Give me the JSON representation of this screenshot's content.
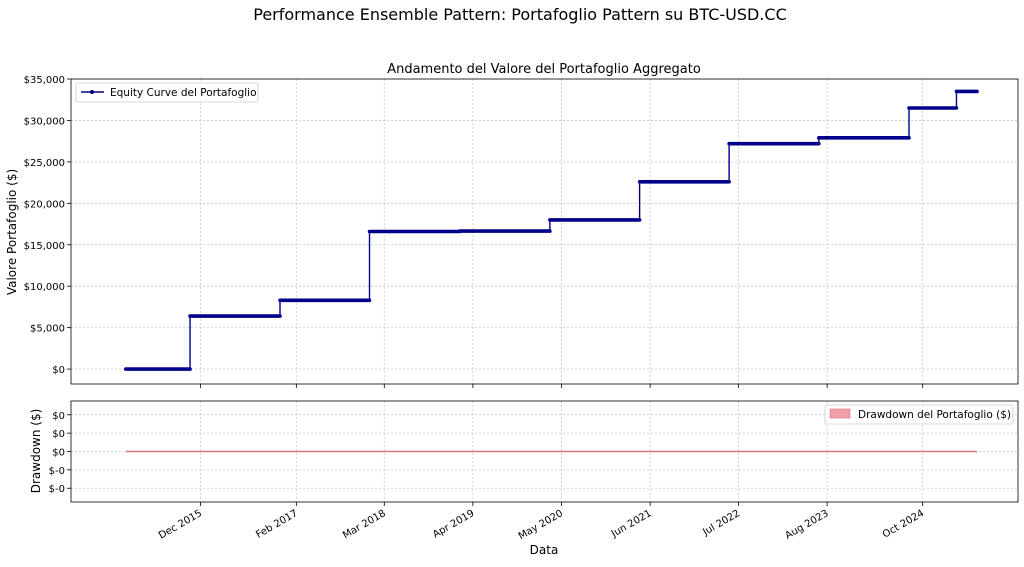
{
  "suptitle": "Performance Ensemble Pattern: Portafoglio Pattern su BTC-USD.CC",
  "chart_data": [
    {
      "type": "line",
      "title": "Andamento del Valore del Portafoglio Aggregato",
      "xlabel": "",
      "ylabel": "Valore Portafoglio ($)",
      "grid": true,
      "legend_position": "top-left",
      "ylim": [
        -1800,
        35000
      ],
      "yticks": [
        0,
        5000,
        10000,
        15000,
        20000,
        25000,
        30000,
        35000
      ],
      "ytick_labels": [
        "$0",
        "$5,000",
        "$10,000",
        "$15,000",
        "$20,000",
        "$25,000",
        "$30,000",
        "$35,000"
      ],
      "series": [
        {
          "name": "Equity Curve del Portafoglio",
          "color": "#00008b",
          "step_points": [
            {
              "x": "2015-01-01",
              "y": 0
            },
            {
              "x": "2015-10-15",
              "y": 6400
            },
            {
              "x": "2016-11-20",
              "y": 8300
            },
            {
              "x": "2017-12-25",
              "y": 16600
            },
            {
              "x": "2019-02-01",
              "y": 16650
            },
            {
              "x": "2020-03-10",
              "y": 18000
            },
            {
              "x": "2021-04-15",
              "y": 22600
            },
            {
              "x": "2022-05-20",
              "y": 27200
            },
            {
              "x": "2023-06-25",
              "y": 27900
            },
            {
              "x": "2024-08-01",
              "y": 31500
            },
            {
              "x": "2025-03-01",
              "y": 33500
            }
          ],
          "end_x": "2025-06-01"
        }
      ]
    },
    {
      "type": "area",
      "title": "",
      "xlabel": "Data",
      "ylabel": "Drawdown ($)",
      "grid": true,
      "legend_position": "top-right",
      "ylim": [
        -0.055,
        0.055
      ],
      "yticks": [
        -0.04,
        -0.02,
        0,
        0.02,
        0.04
      ],
      "ytick_labels": [
        "$-0",
        "$-0",
        "$0",
        "$0",
        "$0"
      ],
      "series": [
        {
          "name": "Drawdown del Portafoglio ($)",
          "color": "#e0707e",
          "x": [
            "2015-01-01",
            "2025-06-01"
          ],
          "values": [
            0,
            0
          ]
        }
      ]
    }
  ],
  "x_axis": {
    "range": [
      "2014-05-01",
      "2025-12-01"
    ],
    "tick_dates": [
      "2015-12-01",
      "2017-02-01",
      "2018-03-01",
      "2019-04-01",
      "2020-05-01",
      "2021-06-01",
      "2022-07-01",
      "2023-08-01",
      "2024-10-01"
    ],
    "tick_labels": [
      "Dec 2015",
      "Feb 2017",
      "Mar 2018",
      "Apr 2019",
      "May 2020",
      "Jun 2021",
      "Jul 2022",
      "Aug 2023",
      "Oct 2024"
    ]
  }
}
